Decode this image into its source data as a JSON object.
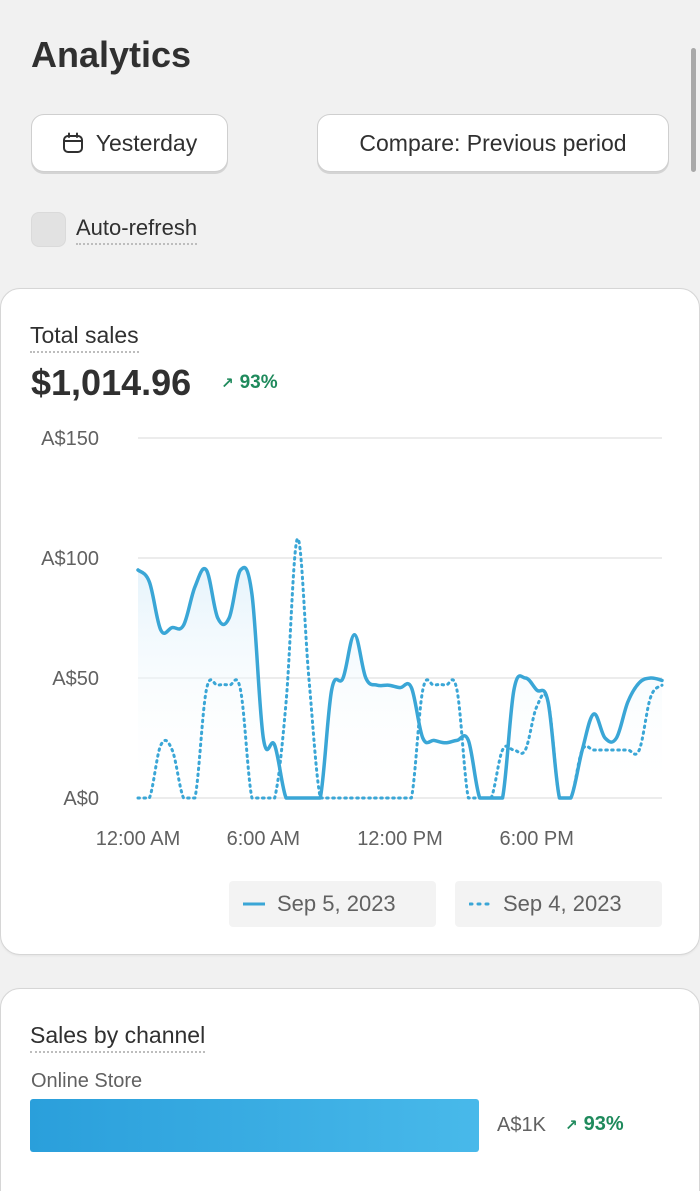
{
  "header": {
    "title": "Analytics"
  },
  "toolbar": {
    "date_label": "Yesterday",
    "compare_label": "Compare: Previous period",
    "auto_refresh_label": "Auto-refresh",
    "auto_refresh_checked": false
  },
  "total_sales": {
    "title": "Total sales",
    "value": "$1,014.96",
    "change": "93%",
    "change_direction": "up",
    "legend": [
      {
        "label": "Sep 5, 2023",
        "style": "solid"
      },
      {
        "label": "Sep 4, 2023",
        "style": "dotted"
      }
    ]
  },
  "chart_data": {
    "type": "line",
    "x_tick_labels": [
      "12:00 AM",
      "6:00 AM",
      "12:00 PM",
      "6:00 PM"
    ],
    "y_tick_labels": [
      "A$0",
      "A$50",
      "A$100",
      "A$150"
    ],
    "y_ticks": [
      0,
      50,
      100,
      150
    ],
    "ylim": [
      0,
      150
    ],
    "x_unit": "hour of day",
    "xlim": [
      0,
      23
    ],
    "grid": true,
    "legend_position": "bottom-right",
    "colors": {
      "line": "#3aa6d6",
      "area": "#eaf6fc"
    },
    "series": [
      {
        "name": "Sep 5, 2023",
        "style": "solid",
        "x": [
          0,
          0.5,
          1,
          1.5,
          2,
          2.5,
          3,
          3.5,
          4,
          4.5,
          5,
          5.5,
          6,
          6.5,
          7,
          7.5,
          8,
          8.5,
          9,
          9.5,
          10,
          10.5,
          11,
          11.5,
          12,
          12.5,
          13,
          13.5,
          14,
          14.5,
          15,
          15.5,
          16,
          16.5,
          17,
          17.5,
          18,
          18.5,
          19,
          19.5,
          20,
          20.5,
          21,
          21.5,
          22,
          22.5,
          23
        ],
        "y": [
          95,
          90,
          70,
          71,
          72,
          88,
          95,
          75,
          75,
          95,
          85,
          25,
          22,
          0,
          0,
          0,
          0,
          45,
          50,
          68,
          50,
          47,
          47,
          46,
          46,
          25,
          24,
          23,
          24,
          24,
          0,
          0,
          0,
          45,
          50,
          45,
          40,
          0,
          0,
          20,
          35,
          25,
          25,
          40,
          48,
          50,
          49
        ]
      },
      {
        "name": "Sep 4, 2023",
        "style": "dotted",
        "x": [
          0,
          0.5,
          1,
          1.5,
          2,
          2.5,
          3,
          3.5,
          4,
          4.5,
          5,
          5.5,
          6,
          6.5,
          7,
          7.5,
          8,
          8.5,
          9,
          9.5,
          10,
          10.5,
          11,
          11.5,
          12,
          12.5,
          13,
          13.5,
          14,
          14.5,
          15,
          15.5,
          16,
          16.5,
          17,
          17.5,
          18,
          18.5,
          19,
          19.5,
          20,
          20.5,
          21,
          21.5,
          22,
          22.5,
          23
        ],
        "y": [
          0,
          0,
          22,
          20,
          0,
          0,
          45,
          47,
          47,
          45,
          0,
          0,
          0,
          40,
          108,
          50,
          0,
          0,
          0,
          0,
          0,
          0,
          0,
          0,
          0,
          45,
          47,
          47,
          45,
          0,
          0,
          0,
          20,
          20,
          20,
          38,
          40,
          0,
          0,
          20,
          20,
          20,
          20,
          20,
          20,
          42,
          47
        ]
      }
    ]
  },
  "sales_by_channel": {
    "title": "Sales by channel",
    "channels": [
      {
        "name": "Online Store",
        "value": "A$1K",
        "change": "93%",
        "change_direction": "up",
        "bar_fraction": 1.0
      }
    ]
  }
}
